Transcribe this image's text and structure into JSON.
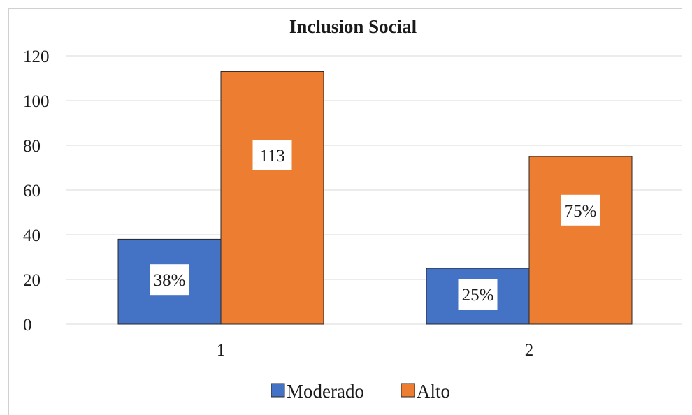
{
  "chart_data": {
    "type": "bar",
    "title": "Inclusion Social",
    "categories": [
      "1",
      "2"
    ],
    "series": [
      {
        "name": "Moderado",
        "values": [
          38,
          25
        ],
        "color": "#4472C4",
        "labels": [
          "38%",
          "25%"
        ]
      },
      {
        "name": "Alto",
        "values": [
          113,
          75
        ],
        "color": "#ED7D31",
        "labels": [
          "113",
          "75%"
        ]
      }
    ],
    "ylim": [
      0,
      120
    ],
    "yticks": [
      0,
      20,
      40,
      60,
      80,
      100,
      120
    ],
    "grid": true,
    "legend_position": "bottom"
  }
}
